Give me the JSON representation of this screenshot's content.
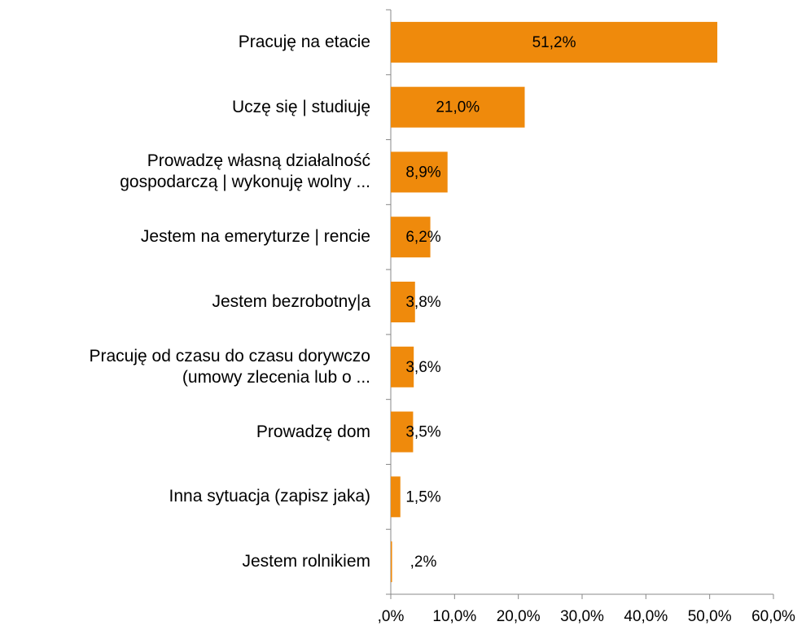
{
  "chart_data": {
    "type": "bar",
    "orientation": "horizontal",
    "categories": [
      "Pracuję na etacie",
      "Uczę się | studiuję",
      "Prowadzę własną działalność\ngospodarczą | wykonuję wolny ...",
      "Jestem na emeryturze | rencie",
      "Jestem bezrobotny|a",
      "Pracuję od czasu do czasu dorywczo\n(umowy zlecenia lub o ...",
      "Prowadzę dom",
      "Inna sytuacja (zapisz jaka)",
      "Jestem rolnikiem"
    ],
    "values": [
      51.2,
      21.0,
      8.9,
      6.2,
      3.8,
      3.6,
      3.5,
      1.5,
      0.2
    ],
    "value_labels": [
      "51,2%",
      "21,0%",
      "8,9%",
      "6,2%",
      "3,8%",
      "3,6%",
      "3,5%",
      "1,5%",
      ",2%"
    ],
    "color": "#ef8a0c",
    "xlim": [
      0,
      60
    ],
    "xticks": [
      {
        "value": 0,
        "label": ",0%"
      },
      {
        "value": 10,
        "label": "10,0%"
      },
      {
        "value": 20,
        "label": "20,0%"
      },
      {
        "value": 30,
        "label": "30,0%"
      },
      {
        "value": 40,
        "label": "40,0%"
      },
      {
        "value": 50,
        "label": "50,0%"
      },
      {
        "value": 60,
        "label": "60,0%"
      }
    ],
    "grid": false
  }
}
